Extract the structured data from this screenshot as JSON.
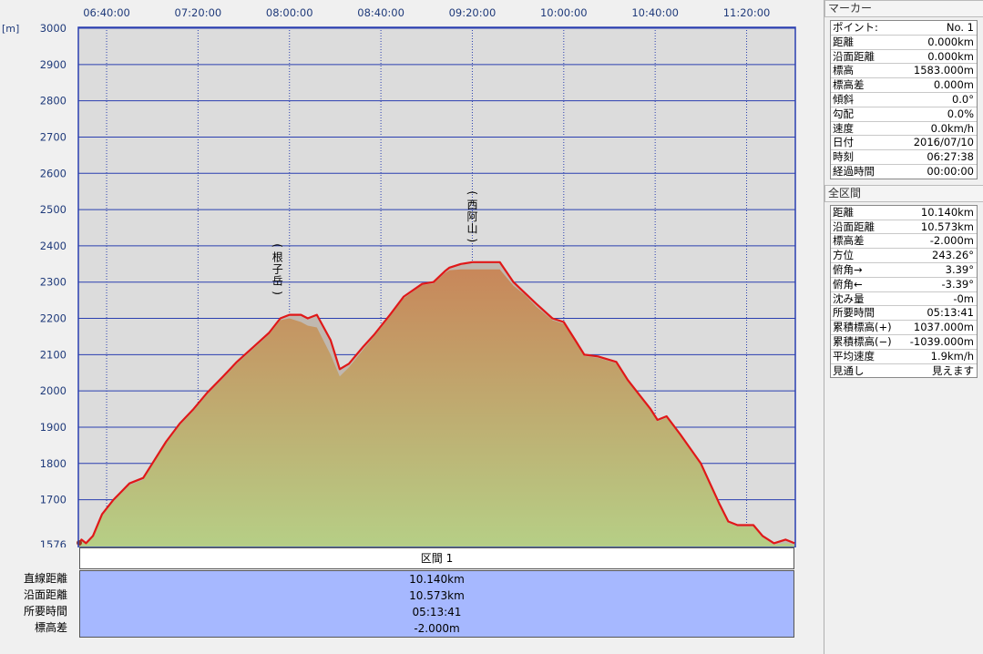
{
  "chart_data": {
    "type": "area",
    "unit_label": "[m]",
    "y_ticks": [
      "3000",
      "2900",
      "2800",
      "2700",
      "2600",
      "2500",
      "2400",
      "2300",
      "2200",
      "2100",
      "2000",
      "1900",
      "1800",
      "1700",
      "1576"
    ],
    "ylim": [
      1576,
      3000
    ],
    "x_ticks": [
      "06:40:00",
      "07:20:00",
      "08:00:00",
      "08:40:00",
      "09:20:00",
      "10:00:00",
      "10:40:00",
      "11:20:00"
    ],
    "xlim": [
      "06:27:38",
      "11:41:19"
    ],
    "grid": true,
    "series": [
      {
        "x": [
          "06:27:38",
          "06:29",
          "06:31",
          "06:34",
          "06:38",
          "06:43",
          "06:50",
          "06:56",
          "07:00",
          "07:06",
          "07:12",
          "07:18",
          "07:24",
          "07:31",
          "07:37",
          "07:44",
          "07:51",
          "07:56",
          "08:00",
          "08:05",
          "08:08",
          "08:12",
          "08:18",
          "08:22",
          "08:26",
          "08:32",
          "08:37",
          "08:44",
          "08:50",
          "08:58",
          "09:03",
          "09:08",
          "09:10",
          "09:15",
          "09:20",
          "09:32",
          "09:38",
          "09:43",
          "09:48",
          "09:55",
          "10:00",
          "10:05",
          "10:09",
          "10:15",
          "10:23",
          "10:28",
          "10:33",
          "10:38",
          "10:41",
          "10:45",
          "10:51",
          "11:00",
          "11:08",
          "11:12",
          "11:16",
          "11:23",
          "11:27",
          "11:32",
          "11:37",
          "11:41"
        ],
        "values": [
          1576,
          1590,
          1580,
          1600,
          1660,
          1700,
          1745,
          1760,
          1800,
          1860,
          1910,
          1950,
          1995,
          2040,
          2080,
          2120,
          2160,
          2200,
          2210,
          2210,
          2200,
          2210,
          2140,
          2060,
          2075,
          2120,
          2155,
          2210,
          2260,
          2295,
          2300,
          2330,
          2340,
          2350,
          2355,
          2355,
          2300,
          2270,
          2240,
          2200,
          2190,
          2140,
          2100,
          2095,
          2080,
          2030,
          1990,
          1950,
          1920,
          1930,
          1880,
          1800,
          1690,
          1640,
          1630,
          1630,
          1600,
          1580,
          1590,
          1580
        ]
      },
      {
        "x": [
          "06:27:38",
          "06:29",
          "06:31",
          "06:34",
          "06:38",
          "06:43",
          "06:50",
          "06:56",
          "07:00",
          "07:06",
          "07:12",
          "07:18",
          "07:24",
          "07:31",
          "07:37",
          "07:44",
          "07:51",
          "07:56",
          "08:00",
          "08:05",
          "08:08",
          "08:12",
          "08:18",
          "08:22",
          "08:26",
          "08:32",
          "08:37",
          "08:44",
          "08:50",
          "08:58",
          "09:03",
          "09:08",
          "09:10",
          "09:15",
          "09:20",
          "09:32",
          "09:38",
          "09:43",
          "09:48",
          "09:55",
          "10:00",
          "10:05",
          "10:09",
          "10:15",
          "10:23",
          "10:28",
          "10:33",
          "10:38",
          "10:41",
          "10:45",
          "10:51",
          "11:00",
          "11:08",
          "11:12",
          "11:16",
          "11:23",
          "11:27",
          "11:32",
          "11:37",
          "11:41"
        ],
        "values": [
          1576,
          1586,
          1578,
          1596,
          1655,
          1695,
          1740,
          1755,
          1795,
          1855,
          1905,
          1945,
          1990,
          2035,
          2075,
          2115,
          2155,
          2195,
          2200,
          2190,
          2180,
          2175,
          2100,
          2040,
          2065,
          2112,
          2150,
          2205,
          2255,
          2292,
          2296,
          2325,
          2333,
          2335,
          2335,
          2335,
          2290,
          2265,
          2232,
          2195,
          2185,
          2136,
          2096,
          2091,
          2076,
          2026,
          1986,
          1946,
          1916,
          1926,
          1876,
          1796,
          1686,
          1636,
          1626,
          1626,
          1596,
          1576,
          1580,
          1576
        ]
      }
    ],
    "annotations": [
      {
        "chars": [
          "(",
          "根",
          "子",
          "岳",
          ")"
        ],
        "x": "07:58",
        "y": 2220
      },
      {
        "chars": [
          "(",
          "西",
          "阿",
          "山",
          ")"
        ],
        "x": "09:20",
        "y": 2365
      }
    ]
  },
  "section_table": {
    "header": "区間 1",
    "rows": [
      {
        "label": "直線距離",
        "value": "10.140km"
      },
      {
        "label": "沿面距離",
        "value": "10.573km"
      },
      {
        "label": "所要時間",
        "value": "05:13:41"
      },
      {
        "label": "標高差",
        "value": "-2.000m"
      }
    ]
  },
  "marker_panel": {
    "title": "マーカー",
    "rows": [
      {
        "key": "ポイント:",
        "value": "No. 1"
      },
      {
        "key": "距離",
        "value": "0.000km"
      },
      {
        "key": "沿面距離",
        "value": "0.000km"
      },
      {
        "key": "標高",
        "value": "1583.000m"
      },
      {
        "key": "標高差",
        "value": "0.000m"
      },
      {
        "key": "傾斜",
        "value": "0.0°"
      },
      {
        "key": "勾配",
        "value": "0.0%"
      },
      {
        "key": "速度",
        "value": "0.0km/h"
      },
      {
        "key": "日付",
        "value": "2016/07/10"
      },
      {
        "key": "時刻",
        "value": "06:27:38"
      },
      {
        "key": "経過時間",
        "value": "00:00:00"
      }
    ]
  },
  "all_section_panel": {
    "title": "全区間",
    "rows": [
      {
        "key": "距離",
        "value": "10.140km"
      },
      {
        "key": "沿面距離",
        "value": "10.573km"
      },
      {
        "key": "標高差",
        "value": "-2.000m"
      },
      {
        "key": "方位",
        "value": "243.26°"
      },
      {
        "key": "俯角→",
        "value": "3.39°"
      },
      {
        "key": "俯角←",
        "value": "-3.39°"
      },
      {
        "key": "沈み量",
        "value": "-0m"
      },
      {
        "key": "所要時間",
        "value": "05:13:41"
      },
      {
        "key": "累積標高(+)",
        "value": "1037.000m"
      },
      {
        "key": "累積標高(−)",
        "value": "-1039.000m"
      },
      {
        "key": "平均速度",
        "value": "1.9km/h"
      },
      {
        "key": "見通し",
        "value": "見えます"
      }
    ]
  },
  "colors": {
    "plot_bg": "#dcdcdc",
    "grid": "#2a3fb0",
    "profile_line": "#e01818",
    "fill_top": "#c8875a",
    "fill_bottom": "#b6cf86",
    "shadow_fill": "#c0b8b0",
    "section_value_bg": "#a6b8ff"
  }
}
